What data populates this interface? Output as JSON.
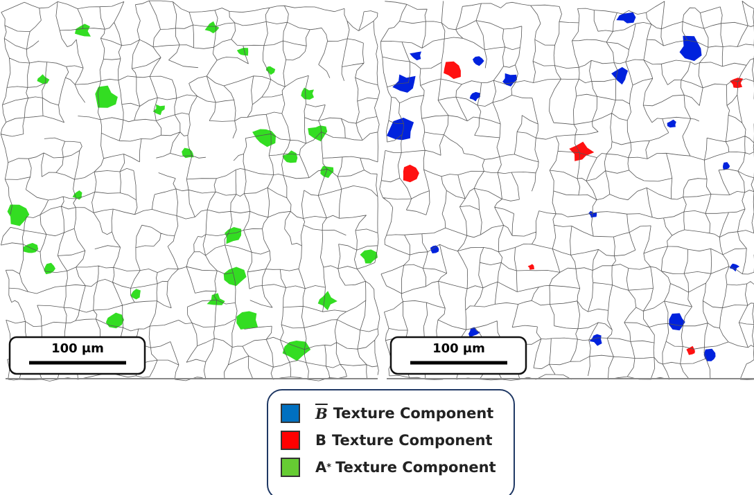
{
  "panels": [
    {
      "scale_bar": "100 μm"
    },
    {
      "scale_bar": "100 μm"
    }
  ],
  "legend": {
    "items": [
      {
        "symbol": "B",
        "text": "Texture Component",
        "color": "#0070c0"
      },
      {
        "symbol": "B",
        "text": "Texture Component",
        "color": "#ff0000"
      },
      {
        "symbol": "A",
        "sup": "*",
        "text": "Texture Component",
        "color": "#66cc33"
      }
    ]
  }
}
